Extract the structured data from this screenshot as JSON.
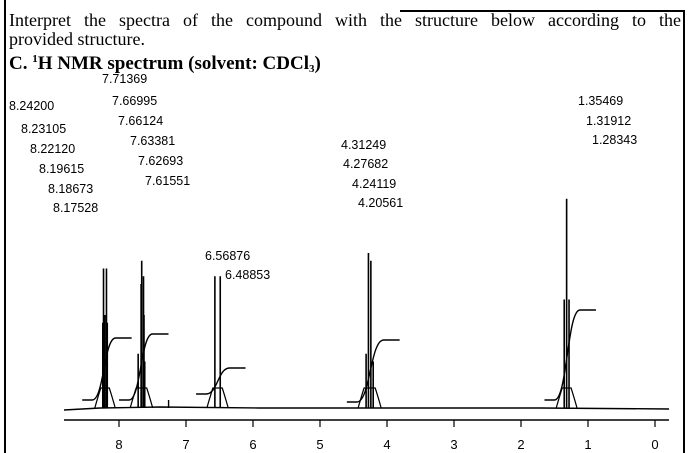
{
  "question": {
    "line1": "Interpret the spectra of the compound with the structure below according to the",
    "line2": "provided structure."
  },
  "heading": {
    "prefix": "C. ",
    "nucleus_mass": "1",
    "nucleus": "H NMR spectrum (solvent: CDCl",
    "solvent_subscript": "3",
    "suffix": ")"
  },
  "chart_data": {
    "type": "line",
    "title": "",
    "xlabel": "",
    "ylabel": "",
    "x_axis": {
      "reversed": true,
      "range": [
        8.9,
        -0.1
      ],
      "ticks": [
        "8",
        "7",
        "6",
        "5",
        "4",
        "3",
        "2",
        "1",
        "0"
      ]
    },
    "grid": false,
    "peak_groups": [
      {
        "center_ppm": 8.21,
        "labels": [
          "8.24200",
          "8.23105",
          "8.22120",
          "8.19615",
          "8.18673",
          "8.17528"
        ],
        "lines_ppm": [
          8.242,
          8.231,
          8.221,
          8.196,
          8.187,
          8.175
        ],
        "intensities": [
          0.55,
          0.9,
          0.6,
          0.6,
          0.9,
          0.55
        ]
      },
      {
        "center_ppm": 7.66,
        "labels": [
          "7.71369",
          "7.66995",
          "7.66124",
          "7.63381",
          "7.62693",
          "7.61551"
        ],
        "lines_ppm": [
          7.714,
          7.67,
          7.661,
          7.634,
          7.627,
          7.616
        ],
        "intensities": [
          0.35,
          0.8,
          0.95,
          0.85,
          0.6,
          0.3
        ]
      },
      {
        "center_ppm": 6.53,
        "labels": [
          "6.56876",
          "6.48853"
        ],
        "lines_ppm": [
          6.569,
          6.489
        ],
        "intensities": [
          0.85,
          0.85
        ]
      },
      {
        "center_ppm": 4.26,
        "labels": [
          "4.31249",
          "4.27682",
          "4.24119",
          "4.20561"
        ],
        "lines_ppm": [
          4.312,
          4.277,
          4.241,
          4.206
        ],
        "intensities": [
          0.35,
          1.0,
          0.95,
          0.3
        ]
      },
      {
        "center_ppm": 1.32,
        "labels": [
          "1.35469",
          "1.31912",
          "1.28343"
        ],
        "lines_ppm": [
          1.355,
          1.319,
          1.283
        ],
        "intensities": [
          0.7,
          1.35,
          0.7
        ]
      }
    ],
    "impurity_ppm": [
      7.26
    ]
  }
}
